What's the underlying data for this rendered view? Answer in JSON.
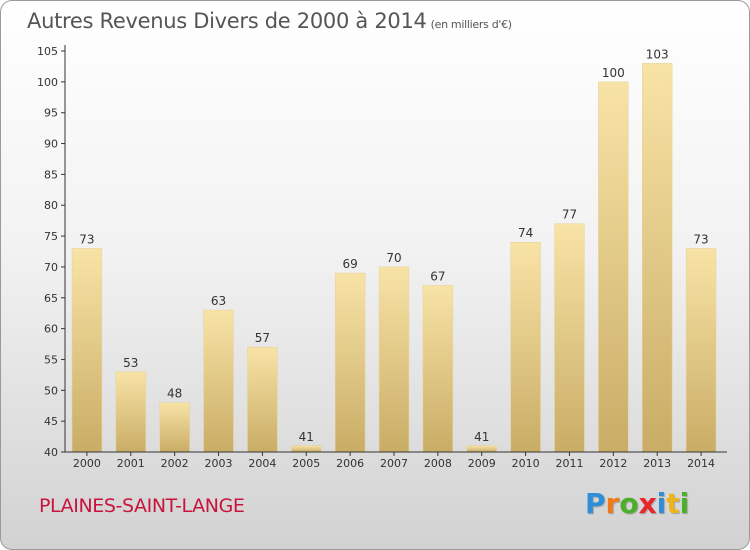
{
  "title": "Autres Revenus Divers de 2000 à 2014",
  "unit": "(en milliers d'€)",
  "commune": "PLAINES-SAINT-LANGE",
  "logo": {
    "letters": [
      {
        "char": "P",
        "color": "#2f8ed6"
      },
      {
        "char": "r",
        "color": "#f07a1a"
      },
      {
        "char": "o",
        "color": "#4caf2a"
      },
      {
        "char": "x",
        "color": "#e8262a"
      },
      {
        "char": "i",
        "color": "#2f8ed6"
      },
      {
        "char": "t",
        "color": "#f0b41a"
      },
      {
        "char": "i",
        "color": "#4caf2a"
      }
    ]
  },
  "colors": {
    "bar_light": "#f8e3a6",
    "bar_dark": "#c9ad66",
    "axis": "#333333",
    "label": "#333333"
  },
  "chart_data": {
    "type": "bar",
    "title": "Autres Revenus Divers de 2000 à 2014",
    "subtitle": "(en milliers d'€)",
    "xlabel": "",
    "ylabel": "",
    "categories": [
      "2000",
      "2001",
      "2002",
      "2003",
      "2004",
      "2005",
      "2006",
      "2007",
      "2008",
      "2009",
      "2010",
      "2011",
      "2012",
      "2013",
      "2014"
    ],
    "values": [
      73,
      53,
      48,
      63,
      57,
      41,
      69,
      70,
      67,
      41,
      74,
      77,
      100,
      103,
      73
    ],
    "ylim": [
      40,
      105
    ],
    "yticks": [
      40,
      45,
      50,
      55,
      60,
      65,
      70,
      75,
      80,
      85,
      90,
      95,
      100,
      105
    ],
    "grid": false,
    "legend": "none"
  }
}
